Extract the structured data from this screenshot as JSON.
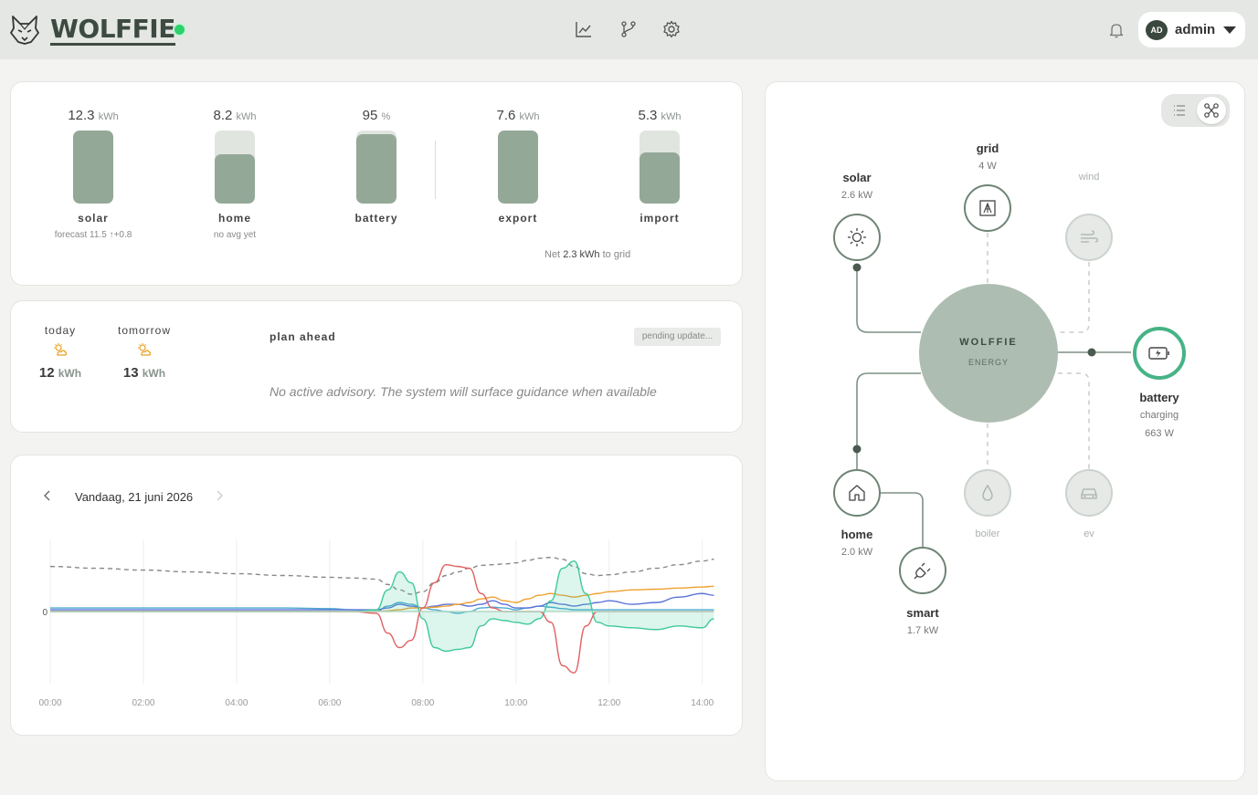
{
  "app": {
    "name": "WOLFFIE",
    "status_color": "#2ed06b"
  },
  "nav": {
    "icons": [
      "chart-icon",
      "branch-icon",
      "gear-icon"
    ]
  },
  "user": {
    "initials": "AD",
    "name": "admin"
  },
  "meters": [
    {
      "key": "solar",
      "value": "12.3",
      "unit": "kWh",
      "label": "solar",
      "sub": "forecast 11.5 ↑+0.8",
      "fill": 1.0
    },
    {
      "key": "home",
      "value": "8.2",
      "unit": "kWh",
      "label": "home",
      "sub": "no avg yet",
      "fill": 0.67
    },
    {
      "key": "battery",
      "value": "95",
      "unit": "%",
      "label": "battery",
      "sub": "",
      "fill": 0.95
    },
    {
      "key": "export",
      "value": "7.6",
      "unit": "kWh",
      "label": "export",
      "sub": "",
      "fill": 1.0
    },
    {
      "key": "import",
      "value": "5.3",
      "unit": "kWh",
      "label": "import",
      "sub": "",
      "fill": 0.7
    }
  ],
  "net": {
    "prefix": "Net",
    "value": "2.3 kWh",
    "suffix": "to grid"
  },
  "forecast": {
    "today": {
      "label": "today",
      "value": "12",
      "unit": "kWh"
    },
    "tomorrow": {
      "label": "tomorrow",
      "value": "13",
      "unit": "kWh"
    }
  },
  "plan": {
    "title": "plan ahead",
    "badge": "pending update...",
    "advisory": "No active advisory. The system will surface guidance when available"
  },
  "chart_data": {
    "type": "line",
    "date_label": "Vandaag, 21 juni 2026",
    "x_ticks": [
      "00:00",
      "02:00",
      "04:00",
      "06:00",
      "08:00",
      "10:00",
      "12:00",
      "14:00"
    ],
    "y_ticks": [
      "0"
    ],
    "x": [
      0,
      1,
      2,
      3,
      4,
      5,
      6,
      6.5,
      7,
      7.25,
      7.5,
      7.75,
      8,
      8.25,
      8.5,
      8.75,
      9,
      9.25,
      9.5,
      9.75,
      10,
      10.25,
      10.5,
      10.75,
      11,
      11.25,
      11.5,
      11.75,
      12,
      12.5,
      13,
      13.5,
      14,
      14.25
    ],
    "series": [
      {
        "name": "",
        "color": "#888888",
        "dashed": true,
        "values": [
          1.25,
          1.2,
          1.15,
          1.1,
          1.05,
          1.0,
          0.95,
          0.93,
          0.9,
          0.75,
          0.6,
          0.48,
          0.55,
          0.8,
          1.0,
          1.1,
          1.2,
          1.28,
          1.3,
          1.32,
          1.35,
          1.42,
          1.48,
          1.5,
          1.45,
          1.25,
          1.05,
          1.0,
          1.02,
          1.1,
          1.2,
          1.3,
          1.4,
          1.45
        ]
      },
      {
        "name": "",
        "color": "#4aaad0",
        "values": [
          0.1,
          0.1,
          0.1,
          0.1,
          0.1,
          0.1,
          0.08,
          0.05,
          0.0,
          0.15,
          0.25,
          0.2,
          0.1,
          0.05,
          0.0,
          -0.05,
          0.0,
          0.1,
          0.12,
          0.1,
          0.05,
          0.1,
          0.15,
          0.12,
          0.08,
          0.05,
          0.05,
          0.05,
          0.05,
          0.05,
          0.05,
          0.05,
          0.05,
          0.05
        ]
      },
      {
        "name": "",
        "color": "#5b72d8",
        "values": [
          0.05,
          0.05,
          0.05,
          0.05,
          0.05,
          0.05,
          0.05,
          0.05,
          0.05,
          0.1,
          0.2,
          0.15,
          0.1,
          0.15,
          0.2,
          0.2,
          0.15,
          0.2,
          0.3,
          0.2,
          0.1,
          0.1,
          0.15,
          0.25,
          0.2,
          0.15,
          0.2,
          0.25,
          0.3,
          0.2,
          0.25,
          0.4,
          0.5,
          0.45
        ]
      },
      {
        "name": "",
        "color": "#f0a030",
        "values": [
          0,
          0,
          0,
          0,
          0,
          0,
          0,
          0,
          0,
          0.02,
          0.05,
          0.1,
          0.1,
          0.12,
          0.15,
          0.2,
          0.25,
          0.35,
          0.4,
          0.3,
          0.25,
          0.35,
          0.45,
          0.5,
          0.45,
          0.4,
          0.45,
          0.5,
          0.55,
          0.6,
          0.62,
          0.65,
          0.68,
          0.7
        ]
      },
      {
        "name": "",
        "color": "#3ec99a",
        "fill": true,
        "values": [
          0,
          0,
          0,
          0,
          0,
          0,
          0,
          0,
          0.05,
          0.6,
          1.1,
          0.8,
          -0.2,
          -1.0,
          -1.1,
          -1.05,
          -1.0,
          -0.4,
          -0.2,
          -0.25,
          -0.3,
          -0.35,
          -0.2,
          0.3,
          1.2,
          1.4,
          0.5,
          -0.3,
          -0.4,
          -0.45,
          -0.5,
          -0.4,
          -0.45,
          -0.2
        ]
      },
      {
        "name": "",
        "color": "#e06060",
        "values": [
          0,
          0,
          0,
          0,
          0,
          0,
          0,
          0,
          -0.05,
          -0.6,
          -1.0,
          -0.8,
          0.1,
          0.8,
          1.3,
          1.25,
          1.2,
          0.5,
          0.1,
          0.0,
          0.0,
          0.0,
          0.0,
          -0.3,
          -1.5,
          -1.7,
          -0.4,
          0.0,
          0.0,
          0.0,
          0.0,
          0.0,
          0.0,
          0.0
        ]
      },
      {
        "name": "",
        "color": "#b0d8c4",
        "values": [
          0,
          0,
          0,
          0,
          0,
          0,
          0,
          0,
          0,
          0,
          0,
          0,
          0,
          0,
          0,
          0,
          0,
          0,
          0,
          0,
          0,
          0,
          0,
          0,
          0,
          0,
          0,
          0,
          0,
          0,
          0,
          0,
          0,
          0
        ]
      }
    ],
    "xlim": [
      0,
      14.3
    ],
    "ylim": [
      -2,
      2
    ]
  },
  "flow": {
    "center": {
      "title": "WOLFFIE",
      "subtitle": "ENERGY"
    },
    "nodes": {
      "solar": {
        "label": "solar",
        "value": "2.6 kW",
        "icon": "sun-icon"
      },
      "grid": {
        "label": "grid",
        "value": "4 W",
        "icon": "grid-icon"
      },
      "wind": {
        "label": "wind",
        "value": "",
        "icon": "wind-icon"
      },
      "battery": {
        "label": "battery",
        "state": "charging",
        "value": "663 W",
        "icon": "battery-icon"
      },
      "home": {
        "label": "home",
        "value": "2.0 kW",
        "icon": "home-icon"
      },
      "boiler": {
        "label": "boiler",
        "value": "",
        "icon": "drop-icon"
      },
      "ev": {
        "label": "ev",
        "value": "",
        "icon": "car-icon"
      },
      "smart": {
        "label": "smart",
        "value": "1.7 kW",
        "icon": "plug-icon"
      }
    }
  }
}
